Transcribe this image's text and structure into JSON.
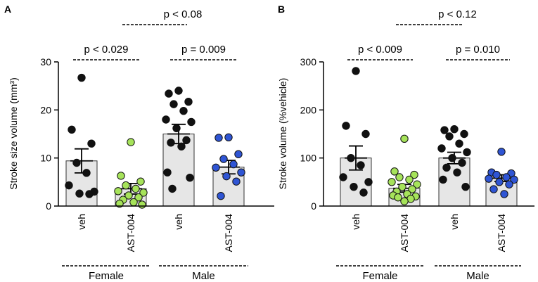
{
  "panels": [
    {
      "letter": "A",
      "ylabel": "Stroke size volume (mm³)",
      "ylim": [
        0,
        30
      ],
      "yticks": [
        0,
        10,
        20,
        30
      ],
      "brackets": [
        {
          "text": "p < 0.029",
          "from": 0,
          "to": 1,
          "level": 1
        },
        {
          "text": "p = 0.009",
          "from": 2,
          "to": 3,
          "level": 1
        },
        {
          "text": "p < 0.08",
          "from": 1,
          "to": 2,
          "level": 2
        }
      ]
    },
    {
      "letter": "B",
      "ylabel": "Stroke volume (%vehicle)",
      "ylim": [
        0,
        300
      ],
      "yticks": [
        0,
        100,
        200,
        300
      ],
      "brackets": [
        {
          "text": "p < 0.009",
          "from": 0,
          "to": 1,
          "level": 1
        },
        {
          "text": "p = 0.010",
          "from": 2,
          "to": 3,
          "level": 1
        },
        {
          "text": "p < 0.12",
          "from": 1,
          "to": 2,
          "level": 2
        }
      ]
    }
  ],
  "groups": [
    {
      "label": "Female",
      "from": 0,
      "to": 1
    },
    {
      "label": "Male",
      "from": 2,
      "to": 3
    }
  ],
  "colors": {
    "veh": "#111111",
    "female_ast": "#a6e35a",
    "male_ast": "#2f55d4",
    "bar": "#e6e6e6"
  },
  "chart_data": [
    {
      "type": "bar",
      "panel": "A",
      "title": "",
      "xlabel": "",
      "ylabel": "Stroke size volume (mm³)",
      "ylim": [
        0,
        30
      ],
      "categories": [
        "veh",
        "AST-004",
        "veh",
        "AST-004"
      ],
      "group_of_category": [
        "Female",
        "Female",
        "Male",
        "Male"
      ],
      "means": [
        9.4,
        3.6,
        15.0,
        8.1
      ],
      "sem": [
        2.5,
        1.1,
        2.0,
        1.4
      ],
      "points": [
        [
          26.7,
          15.9,
          13.0,
          9.0,
          6.9,
          4.3,
          3.0,
          2.6,
          2.5
        ],
        [
          13.3,
          6.3,
          5.1,
          4.3,
          3.6,
          3.1,
          2.8,
          2.2,
          1.8,
          1.3,
          0.8,
          0.5,
          0.3
        ],
        [
          24.0,
          23.4,
          21.7,
          21.2,
          19.8,
          18.0,
          17.5,
          16.2,
          13.7,
          13.2,
          12.4,
          7.0,
          5.9,
          3.6
        ],
        [
          14.3,
          14.2,
          10.8,
          9.8,
          8.7,
          8.0,
          7.0,
          6.2,
          5.1,
          2.1
        ]
      ]
    },
    {
      "type": "bar",
      "panel": "B",
      "title": "",
      "xlabel": "",
      "ylabel": "Stroke volume (%vehicle)",
      "ylim": [
        0,
        300
      ],
      "categories": [
        "veh",
        "AST-004",
        "veh",
        "AST-004"
      ],
      "group_of_category": [
        "Female",
        "Female",
        "Male",
        "Male"
      ],
      "means": [
        100,
        37,
        100,
        58
      ],
      "sem": [
        25,
        8,
        12,
        7
      ],
      "points": [
        [
          281,
          167,
          150,
          100,
          85,
          60,
          50,
          40,
          28
        ],
        [
          140,
          72,
          65,
          60,
          55,
          50,
          45,
          40,
          35,
          30,
          25,
          22,
          20,
          18,
          15,
          10
        ],
        [
          160,
          158,
          150,
          145,
          130,
          120,
          112,
          100,
          90,
          80,
          70,
          55,
          40
        ],
        [
          113,
          70,
          68,
          65,
          60,
          57,
          55,
          50,
          45,
          35,
          25
        ]
      ]
    }
  ]
}
